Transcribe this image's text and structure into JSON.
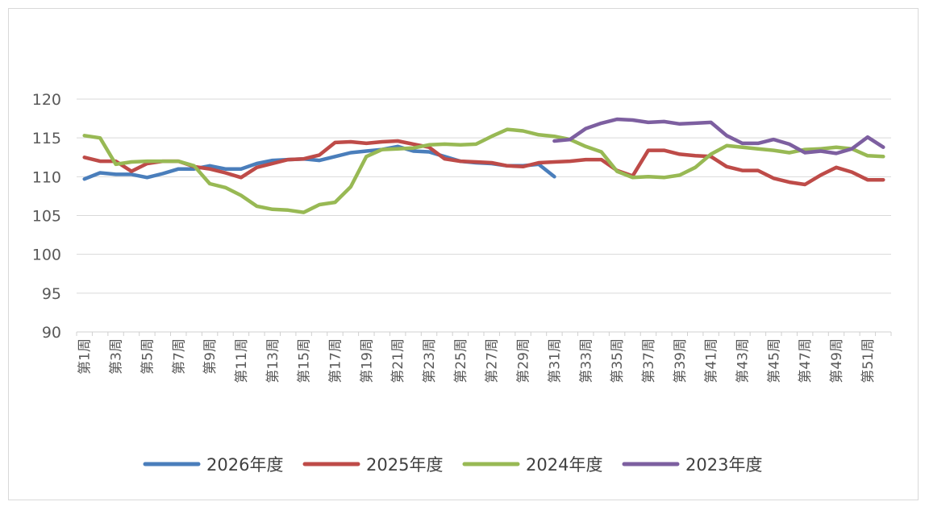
{
  "chart_data": {
    "type": "line",
    "title": "",
    "xlabel": "",
    "ylabel": "",
    "ylim": [
      90,
      120
    ],
    "yticks": [
      90,
      95,
      100,
      105,
      110,
      115,
      120
    ],
    "grid": true,
    "legend_position": "bottom",
    "categories": [
      "第1周",
      "第2周",
      "第3周",
      "第4周",
      "第5周",
      "第6周",
      "第7周",
      "第8周",
      "第9周",
      "第10周",
      "第11周",
      "第12周",
      "第13周",
      "第14周",
      "第15周",
      "第16周",
      "第17周",
      "第18周",
      "第19周",
      "第20周",
      "第21周",
      "第22周",
      "第23周",
      "第24周",
      "第25周",
      "第26周",
      "第27周",
      "第28周",
      "第29周",
      "第30周",
      "第31周",
      "第32周",
      "第33周",
      "第34周",
      "第35周",
      "第36周",
      "第37周",
      "第38周",
      "第39周",
      "第40周",
      "第41周",
      "第42周",
      "第43周",
      "第44周",
      "第45周",
      "第46周",
      "第47周",
      "第48周",
      "第49周",
      "第50周",
      "第51周",
      "第52周"
    ],
    "tick_labels": [
      "第1周",
      "第3周",
      "第5周",
      "第7周",
      "第9周",
      "第11周",
      "第13周",
      "第15周",
      "第17周",
      "第19周",
      "第21周",
      "第23周",
      "第25周",
      "第27周",
      "第29周",
      "第31周",
      "第33周",
      "第35周",
      "第37周",
      "第39周",
      "第41周",
      "第43周",
      "第45周",
      "第47周",
      "第49周",
      "第51周"
    ],
    "series": [
      {
        "name": "2026年度",
        "color": "#4a7ebb",
        "values": [
          109.7,
          110.5,
          110.3,
          110.3,
          109.9,
          110.4,
          111.0,
          111.0,
          111.4,
          111.0,
          111.0,
          111.7,
          112.1,
          112.2,
          112.3,
          112.1,
          112.6,
          113.1,
          113.3,
          113.5,
          113.9,
          113.3,
          113.2,
          112.6,
          112.0,
          111.8,
          111.7,
          111.4,
          111.4,
          111.6,
          110.0,
          null,
          null,
          null,
          null,
          null,
          null,
          null,
          null,
          null,
          null,
          null,
          null,
          null,
          null,
          null,
          null,
          null,
          null,
          null,
          null,
          null
        ]
      },
      {
        "name": "2025年度",
        "color": "#be4b48",
        "values": [
          112.5,
          112.0,
          112.0,
          110.7,
          111.7,
          112.0,
          112.0,
          111.3,
          111.0,
          110.5,
          109.9,
          111.2,
          111.7,
          112.2,
          112.3,
          112.8,
          114.4,
          114.5,
          114.3,
          114.5,
          114.6,
          114.2,
          113.8,
          112.3,
          112.0,
          111.9,
          111.8,
          111.4,
          111.3,
          111.8,
          111.9,
          112.0,
          112.2,
          112.2,
          110.8,
          110.1,
          113.4,
          113.4,
          112.9,
          112.7,
          112.6,
          111.3,
          110.8,
          110.8,
          109.8,
          109.3,
          109.0,
          110.2,
          111.2,
          110.6,
          109.6,
          109.6
        ]
      },
      {
        "name": "2024年度",
        "color": "#98b954",
        "values": [
          115.3,
          115.0,
          111.6,
          111.9,
          112.0,
          112.0,
          112.0,
          111.4,
          109.1,
          108.6,
          107.6,
          106.2,
          105.8,
          105.7,
          105.4,
          106.4,
          106.7,
          108.7,
          112.6,
          113.5,
          113.6,
          113.7,
          114.1,
          114.2,
          114.1,
          114.2,
          115.2,
          116.1,
          115.9,
          115.4,
          115.2,
          114.8,
          113.9,
          113.2,
          110.7,
          109.9,
          110.0,
          109.9,
          110.2,
          111.2,
          112.9,
          114.0,
          113.8,
          113.6,
          113.4,
          113.1,
          113.5,
          113.6,
          113.8,
          113.6,
          112.7,
          112.6
        ]
      },
      {
        "name": "2023年度",
        "color": "#7d5fa0",
        "values": [
          null,
          null,
          null,
          null,
          null,
          null,
          null,
          null,
          null,
          null,
          null,
          null,
          null,
          null,
          null,
          null,
          null,
          null,
          null,
          null,
          null,
          null,
          null,
          null,
          null,
          null,
          null,
          null,
          null,
          null,
          114.6,
          114.8,
          116.2,
          116.9,
          117.4,
          117.3,
          117.0,
          117.1,
          116.8,
          116.9,
          117.0,
          115.3,
          114.3,
          114.3,
          114.8,
          114.2,
          113.1,
          113.3,
          113.0,
          113.6,
          115.1,
          113.8
        ]
      }
    ]
  }
}
